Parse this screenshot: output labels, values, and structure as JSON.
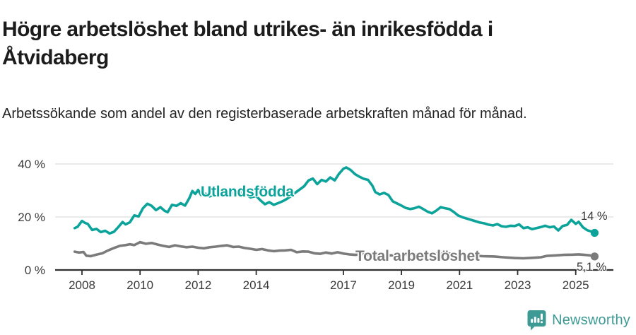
{
  "header": {
    "title": "Högre arbetslöshet bland utrikes- än inrikesfödda i Åtvidaberg",
    "subtitle": "Arbetssökande som andel av den registerbaserade arbetskraften månad för månad."
  },
  "footer": {
    "brand": "Newsworthy",
    "brand_color": "#3d9a94"
  },
  "chart_data": {
    "type": "line",
    "title": "Högre arbetslöshet bland utrikes- än inrikesfödda i Åtvidaberg",
    "subtitle": "Arbetssökande som andel av den registerbaserade arbetskraften månad för månad.",
    "unit": "%",
    "grid": "horizontal",
    "legend_position": "inline-labels",
    "x_axis": {
      "ticks": [
        2008,
        2010,
        2012,
        2014,
        2017,
        2019,
        2021,
        2023,
        2025
      ],
      "range": [
        2007.6,
        2026.3
      ]
    },
    "y_axis": {
      "ticks": [
        0,
        20,
        40
      ],
      "tick_labels": [
        "0 %",
        "20 %",
        "40 %"
      ],
      "range": [
        0,
        42
      ]
    },
    "colors": {
      "axis": "#2f2f2f",
      "gridline": "#dddddd",
      "tick_text": "#3a3a3a"
    },
    "series": [
      {
        "name": "Utlandsfödda",
        "color": "#0ca39a",
        "end_label": "14 %",
        "end_value": 14,
        "points": [
          [
            2007.75,
            15.8
          ],
          [
            2007.85,
            16.3
          ],
          [
            2008.0,
            18.5
          ],
          [
            2008.1,
            17.8
          ],
          [
            2008.2,
            17.4
          ],
          [
            2008.35,
            15.1
          ],
          [
            2008.5,
            15.5
          ],
          [
            2008.65,
            14.3
          ],
          [
            2008.8,
            14.8
          ],
          [
            2008.95,
            13.8
          ],
          [
            2009.1,
            14.4
          ],
          [
            2009.25,
            16.2
          ],
          [
            2009.4,
            18.1
          ],
          [
            2009.5,
            17.2
          ],
          [
            2009.65,
            18.0
          ],
          [
            2009.8,
            20.6
          ],
          [
            2009.95,
            20.2
          ],
          [
            2010.1,
            23.3
          ],
          [
            2010.25,
            25.0
          ],
          [
            2010.4,
            24.2
          ],
          [
            2010.55,
            22.6
          ],
          [
            2010.7,
            23.7
          ],
          [
            2010.85,
            22.3
          ],
          [
            2010.95,
            21.8
          ],
          [
            2011.1,
            24.6
          ],
          [
            2011.25,
            24.2
          ],
          [
            2011.4,
            25.2
          ],
          [
            2011.55,
            24.3
          ],
          [
            2011.7,
            27.2
          ],
          [
            2011.8,
            29.8
          ],
          [
            2011.9,
            28.7
          ],
          [
            2012.0,
            30.2
          ],
          [
            2012.1,
            28.3
          ],
          [
            2012.25,
            28.8
          ],
          [
            2012.4,
            27.8
          ],
          [
            2012.6,
            28.6
          ],
          [
            2012.8,
            29.2
          ],
          [
            2013.0,
            28.3
          ],
          [
            2013.2,
            28.9
          ],
          [
            2013.45,
            29.6
          ],
          [
            2013.6,
            28.8
          ],
          [
            2013.8,
            27.4
          ],
          [
            2014.0,
            27.9
          ],
          [
            2014.15,
            26.2
          ],
          [
            2014.3,
            24.8
          ],
          [
            2014.45,
            25.6
          ],
          [
            2014.6,
            24.6
          ],
          [
            2014.75,
            25.2
          ],
          [
            2014.9,
            25.9
          ],
          [
            2015.05,
            26.8
          ],
          [
            2015.2,
            27.9
          ],
          [
            2015.35,
            29.2
          ],
          [
            2015.5,
            30.4
          ],
          [
            2015.65,
            31.6
          ],
          [
            2015.8,
            33.8
          ],
          [
            2015.95,
            34.5
          ],
          [
            2016.1,
            32.4
          ],
          [
            2016.25,
            34.0
          ],
          [
            2016.4,
            33.4
          ],
          [
            2016.55,
            34.9
          ],
          [
            2016.7,
            33.8
          ],
          [
            2016.85,
            36.3
          ],
          [
            2017.0,
            38.2
          ],
          [
            2017.1,
            38.7
          ],
          [
            2017.25,
            37.7
          ],
          [
            2017.4,
            36.2
          ],
          [
            2017.55,
            35.2
          ],
          [
            2017.7,
            34.4
          ],
          [
            2017.85,
            34.0
          ],
          [
            2018.0,
            31.8
          ],
          [
            2018.1,
            29.4
          ],
          [
            2018.25,
            28.5
          ],
          [
            2018.4,
            29.1
          ],
          [
            2018.55,
            28.3
          ],
          [
            2018.7,
            25.9
          ],
          [
            2018.85,
            25.1
          ],
          [
            2019.0,
            24.3
          ],
          [
            2019.15,
            23.4
          ],
          [
            2019.3,
            23.0
          ],
          [
            2019.45,
            23.3
          ],
          [
            2019.6,
            23.9
          ],
          [
            2019.75,
            23.0
          ],
          [
            2019.9,
            22.0
          ],
          [
            2020.05,
            21.4
          ],
          [
            2020.2,
            22.4
          ],
          [
            2020.35,
            23.7
          ],
          [
            2020.5,
            23.3
          ],
          [
            2020.65,
            23.0
          ],
          [
            2020.8,
            21.9
          ],
          [
            2020.95,
            20.6
          ],
          [
            2021.1,
            19.9
          ],
          [
            2021.25,
            19.4
          ],
          [
            2021.4,
            18.9
          ],
          [
            2021.55,
            18.4
          ],
          [
            2021.7,
            17.9
          ],
          [
            2021.85,
            17.6
          ],
          [
            2022.0,
            17.1
          ],
          [
            2022.15,
            16.8
          ],
          [
            2022.3,
            17.3
          ],
          [
            2022.45,
            16.5
          ],
          [
            2022.6,
            16.3
          ],
          [
            2022.75,
            16.7
          ],
          [
            2022.9,
            16.6
          ],
          [
            2023.05,
            17.2
          ],
          [
            2023.2,
            15.8
          ],
          [
            2023.35,
            16.1
          ],
          [
            2023.5,
            15.4
          ],
          [
            2023.65,
            15.8
          ],
          [
            2023.8,
            16.2
          ],
          [
            2023.95,
            16.7
          ],
          [
            2024.1,
            16.1
          ],
          [
            2024.25,
            16.4
          ],
          [
            2024.4,
            14.9
          ],
          [
            2024.55,
            16.6
          ],
          [
            2024.7,
            17.0
          ],
          [
            2024.85,
            18.9
          ],
          [
            2025.0,
            17.4
          ],
          [
            2025.1,
            18.2
          ],
          [
            2025.25,
            16.1
          ],
          [
            2025.4,
            15.0
          ],
          [
            2025.55,
            14.5
          ],
          [
            2025.65,
            14.0
          ]
        ]
      },
      {
        "name": "Total arbetslöshet",
        "color": "#7b7b7b",
        "end_label": "5,1 %",
        "end_value": 5.1,
        "points": [
          [
            2007.75,
            6.9
          ],
          [
            2007.9,
            6.6
          ],
          [
            2008.05,
            6.8
          ],
          [
            2008.15,
            5.4
          ],
          [
            2008.3,
            5.2
          ],
          [
            2008.5,
            5.8
          ],
          [
            2008.7,
            6.3
          ],
          [
            2008.9,
            7.4
          ],
          [
            2009.1,
            8.3
          ],
          [
            2009.3,
            9.1
          ],
          [
            2009.5,
            9.4
          ],
          [
            2009.65,
            9.7
          ],
          [
            2009.8,
            9.4
          ],
          [
            2010.0,
            10.5
          ],
          [
            2010.2,
            9.9
          ],
          [
            2010.4,
            10.2
          ],
          [
            2010.6,
            9.6
          ],
          [
            2010.8,
            9.1
          ],
          [
            2011.0,
            8.7
          ],
          [
            2011.2,
            9.3
          ],
          [
            2011.4,
            8.9
          ],
          [
            2011.6,
            8.6
          ],
          [
            2011.8,
            8.8
          ],
          [
            2012.0,
            8.4
          ],
          [
            2012.2,
            8.2
          ],
          [
            2012.4,
            8.6
          ],
          [
            2012.6,
            8.8
          ],
          [
            2012.8,
            9.1
          ],
          [
            2013.0,
            9.3
          ],
          [
            2013.2,
            8.7
          ],
          [
            2013.4,
            8.8
          ],
          [
            2013.6,
            8.3
          ],
          [
            2013.8,
            8.0
          ],
          [
            2014.0,
            7.6
          ],
          [
            2014.2,
            7.9
          ],
          [
            2014.4,
            7.4
          ],
          [
            2014.6,
            7.1
          ],
          [
            2014.8,
            7.3
          ],
          [
            2015.0,
            7.4
          ],
          [
            2015.2,
            7.6
          ],
          [
            2015.4,
            6.7
          ],
          [
            2015.6,
            7.0
          ],
          [
            2015.8,
            6.9
          ],
          [
            2016.0,
            6.3
          ],
          [
            2016.2,
            6.1
          ],
          [
            2016.4,
            6.6
          ],
          [
            2016.6,
            6.2
          ],
          [
            2016.8,
            6.7
          ],
          [
            2017.0,
            6.2
          ],
          [
            2017.2,
            5.9
          ],
          [
            2017.4,
            5.7
          ],
          [
            2017.7,
            5.9
          ],
          [
            2018.0,
            5.6
          ],
          [
            2018.3,
            5.8
          ],
          [
            2018.6,
            5.5
          ],
          [
            2019.0,
            5.7
          ],
          [
            2019.4,
            5.9
          ],
          [
            2019.8,
            5.6
          ],
          [
            2020.2,
            6.1
          ],
          [
            2020.5,
            6.3
          ],
          [
            2020.8,
            6.0
          ],
          [
            2021.0,
            5.8
          ],
          [
            2021.4,
            5.5
          ],
          [
            2021.8,
            5.2
          ],
          [
            2022.2,
            5.1
          ],
          [
            2022.5,
            4.8
          ],
          [
            2022.9,
            4.5
          ],
          [
            2023.2,
            4.4
          ],
          [
            2023.5,
            4.6
          ],
          [
            2023.8,
            4.8
          ],
          [
            2024.0,
            5.3
          ],
          [
            2024.3,
            5.5
          ],
          [
            2024.6,
            5.7
          ],
          [
            2024.9,
            5.8
          ],
          [
            2025.1,
            5.9
          ],
          [
            2025.3,
            5.7
          ],
          [
            2025.5,
            5.5
          ],
          [
            2025.65,
            5.1
          ]
        ]
      }
    ]
  }
}
